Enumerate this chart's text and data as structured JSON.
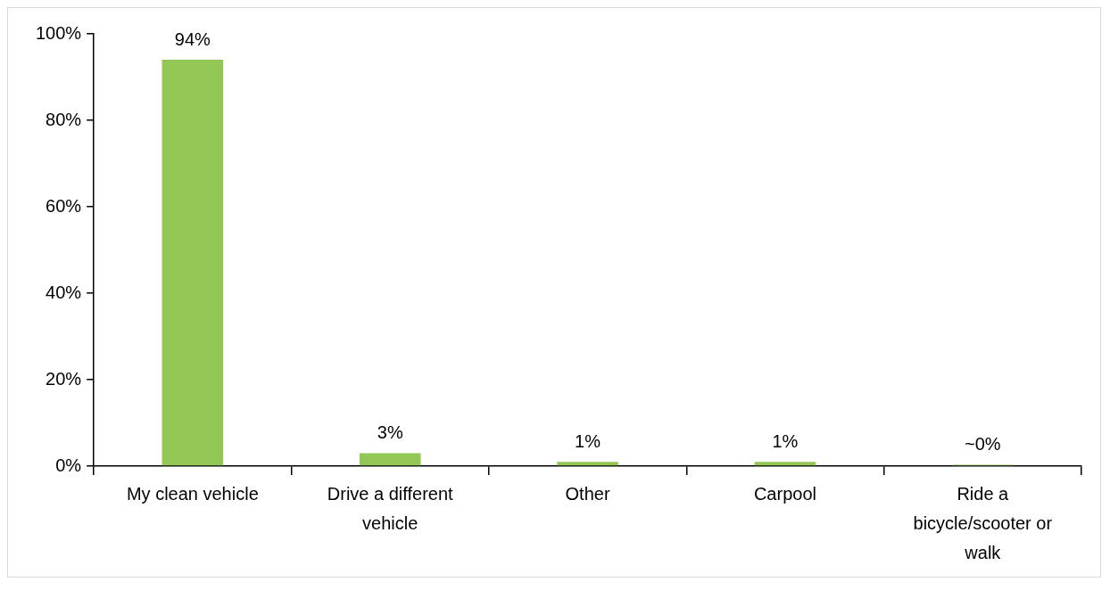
{
  "chart_data": {
    "type": "bar",
    "categories": [
      "My clean vehicle",
      "Drive a different vehicle",
      "Other",
      "Carpool",
      "Ride a bicycle/scooter or walk"
    ],
    "values": [
      94,
      3,
      1,
      1,
      0.3
    ],
    "value_labels": [
      "94%",
      "3%",
      "1%",
      "1%",
      "~0%"
    ],
    "color": "#92c755",
    "ylim": [
      0,
      100
    ],
    "yticks": [
      {
        "value": 0,
        "label": "0%"
      },
      {
        "value": 20,
        "label": "20%"
      },
      {
        "value": 40,
        "label": "40%"
      },
      {
        "value": 60,
        "label": "60%"
      },
      {
        "value": 80,
        "label": "80%"
      },
      {
        "value": 100,
        "label": "100%"
      }
    ],
    "legend": false
  }
}
